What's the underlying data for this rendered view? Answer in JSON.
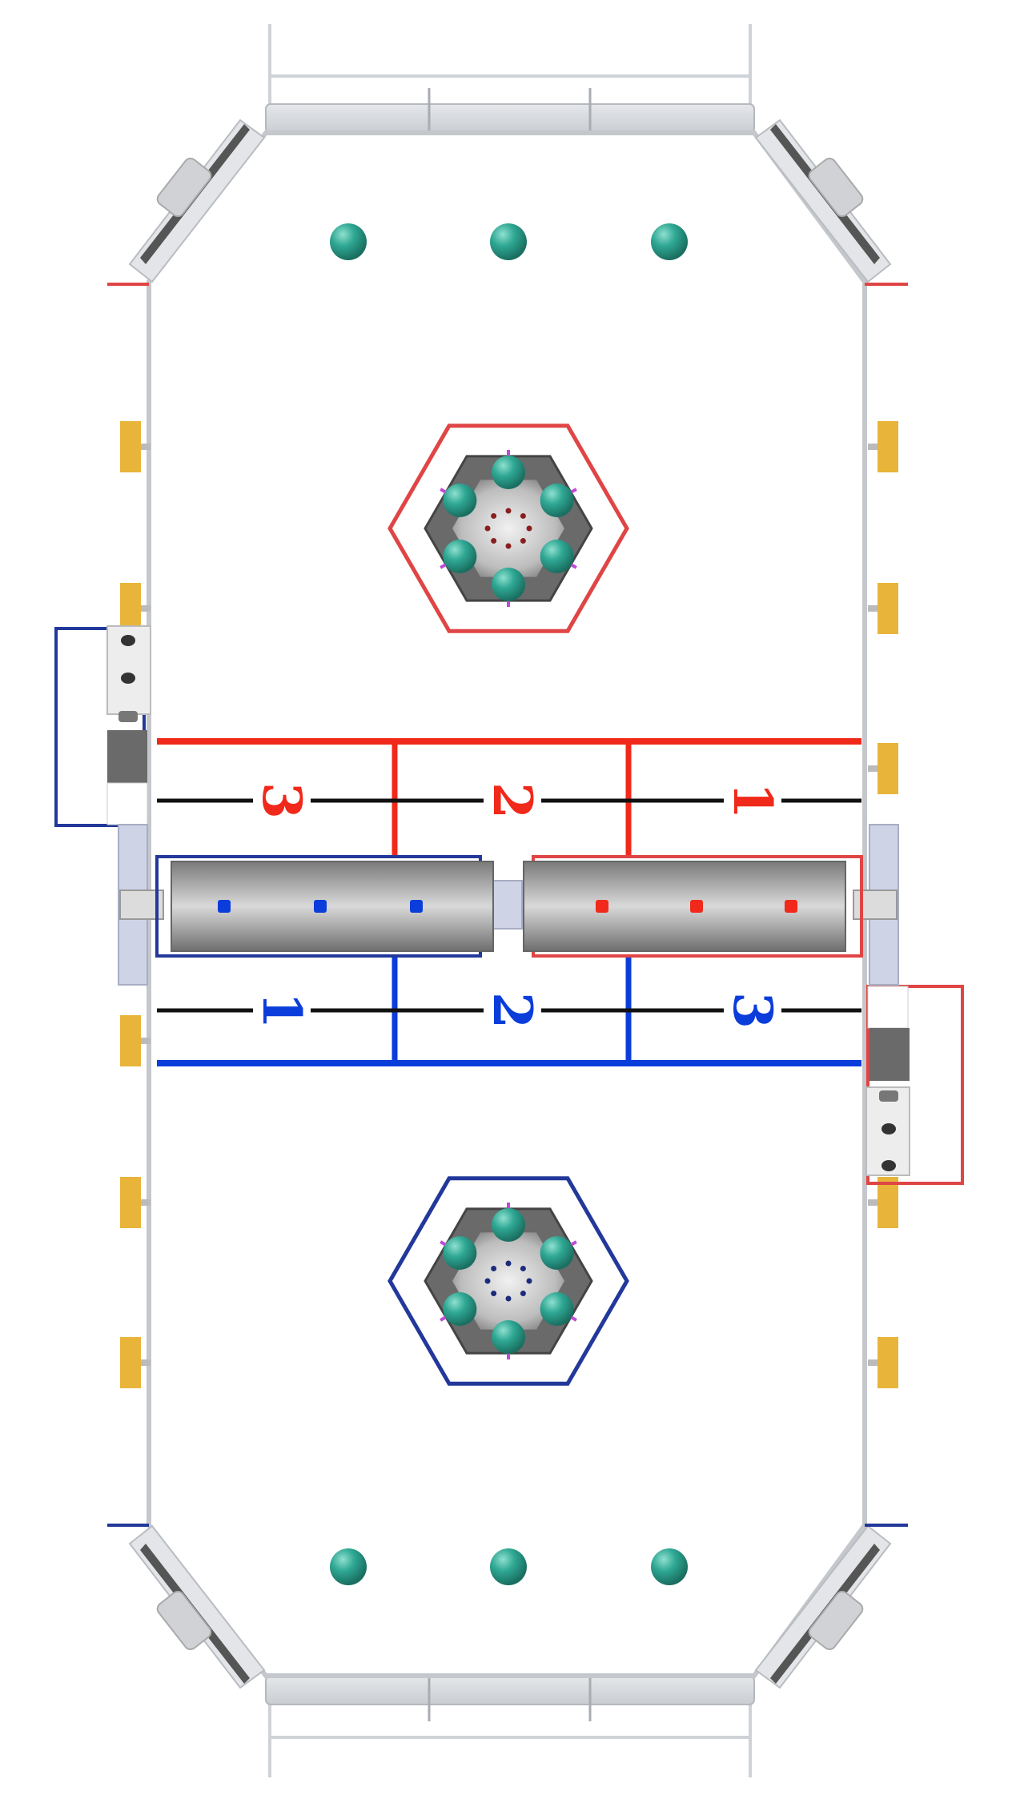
{
  "colors": {
    "red": "#f0291a",
    "blue": "#0b3ddb",
    "red_hex": "#e04545",
    "blue_hex": "#22389a",
    "ball": "#2fa894",
    "peg": "#e8b53a",
    "wall": "#c4c7cc",
    "floor": "#ffffff",
    "tray": "#8c8c8c",
    "accent": "#c04bd6"
  },
  "zones": {
    "red": [
      "3",
      "2",
      "1"
    ],
    "blue": [
      "1",
      "2",
      "3"
    ]
  },
  "icons": {
    "ball": "teal-sphere-icon",
    "peg": "yellow-post-icon",
    "goal": "hexagon-goal-icon"
  }
}
